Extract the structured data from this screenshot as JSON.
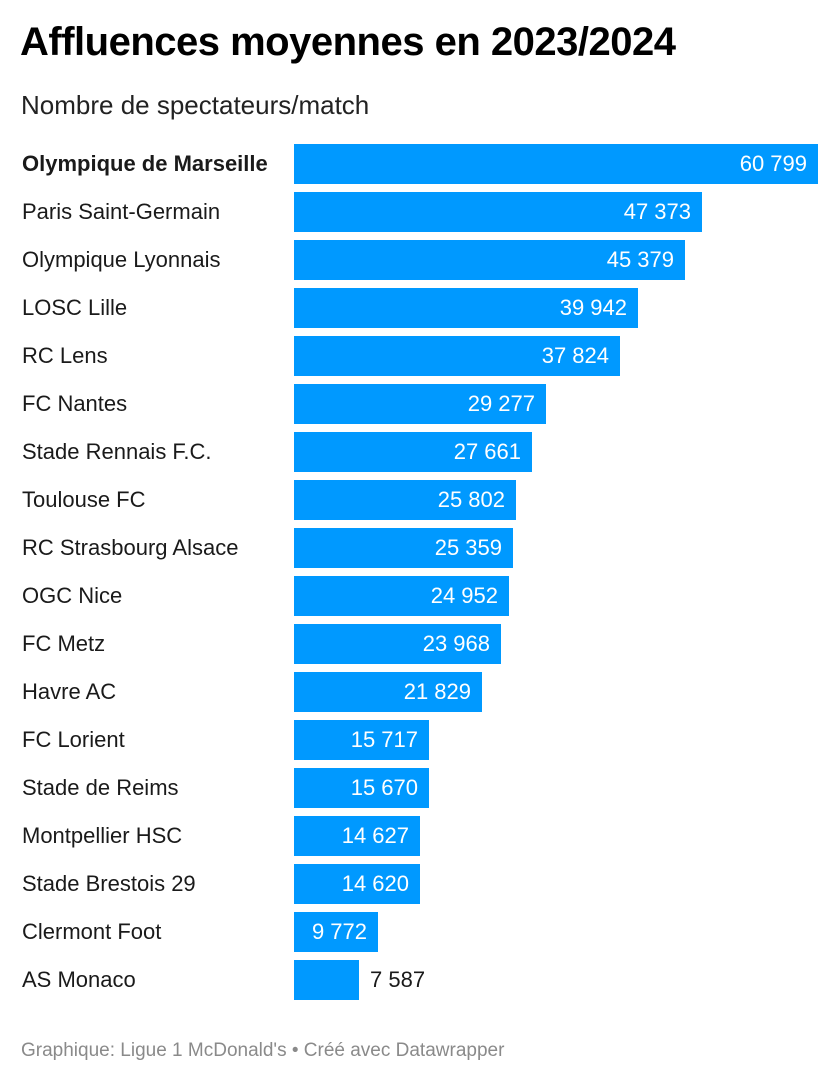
{
  "title": "Affluences moyennes en 2023/2024",
  "subtitle": "Nombre de spectateurs/match",
  "footer": "Graphique: Ligue 1 McDonald's • Créé avec Datawrapper",
  "colors": {
    "bar": "#0099ff",
    "label_inside": "#ffffff",
    "label_outside": "#1a1a1a"
  },
  "chart_data": {
    "type": "bar",
    "orientation": "horizontal",
    "categories": [
      "Olympique de Marseille",
      "Paris Saint-Germain",
      "Olympique Lyonnais",
      "LOSC Lille",
      "RC Lens",
      "FC Nantes",
      "Stade Rennais F.C.",
      "Toulouse FC",
      "RC Strasbourg Alsace",
      "OGC Nice",
      "FC Metz",
      "Havre AC",
      "FC Lorient",
      "Stade de Reims",
      "Montpellier HSC",
      "Stade Brestois 29",
      "Clermont Foot",
      "AS Monaco"
    ],
    "values": [
      60799,
      47373,
      45379,
      39942,
      37824,
      29277,
      27661,
      25802,
      25359,
      24952,
      23968,
      21829,
      15717,
      15670,
      14627,
      14620,
      9772,
      7587
    ],
    "value_labels": [
      "60 799",
      "47 373",
      "45 379",
      "39 942",
      "37 824",
      "29 277",
      "27 661",
      "25 802",
      "25 359",
      "24 952",
      "23 968",
      "21 829",
      "15 717",
      "15 670",
      "14 627",
      "14 620",
      "9 772",
      "7 587"
    ],
    "highlighted": [
      "Olympique de Marseille"
    ],
    "xlim": [
      0,
      60799
    ],
    "grid": false,
    "legend": "none"
  }
}
